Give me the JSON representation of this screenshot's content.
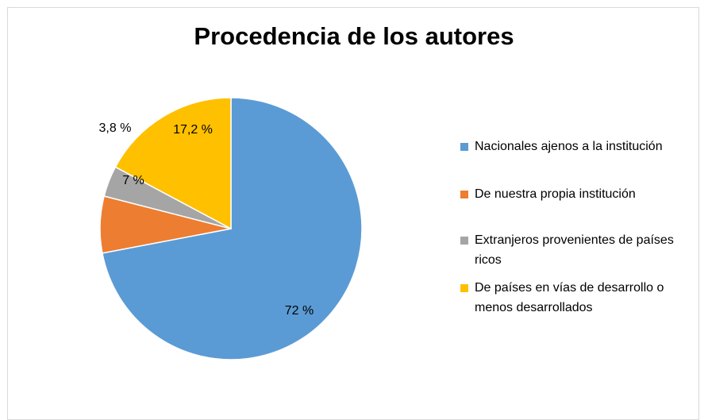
{
  "chart_data": {
    "type": "pie",
    "title": "Procedencia de los autores",
    "categories": [
      "Nacionales ajenos a la institución",
      "De nuestra propia institución",
      "Extranjeros provenientes de países ricos",
      "De países en vías de desarrollo o menos desarrollados"
    ],
    "values": [
      72,
      7,
      3.8,
      17.2
    ],
    "data_labels": [
      "72 %",
      "7 %",
      "3,8 %",
      "17,2 %"
    ],
    "colors": [
      "#5b9bd5",
      "#ed7d31",
      "#a5a5a5",
      "#ffc000"
    ],
    "legend_position": "right"
  }
}
